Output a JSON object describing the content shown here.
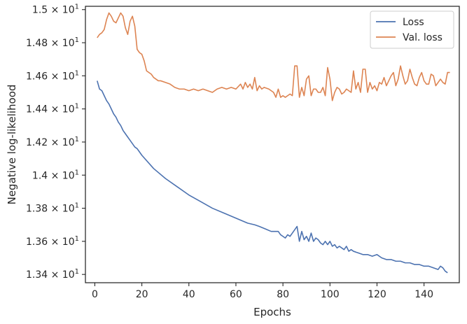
{
  "chart_data": {
    "type": "line",
    "xlabel": "Epochs",
    "ylabel": "Negative log-likelihood",
    "xlim": [
      -4,
      155
    ],
    "ylim": [
      13.35,
      15.02
    ],
    "x_ticks": [
      0,
      20,
      40,
      60,
      80,
      100,
      120,
      140
    ],
    "y_ticks": [
      {
        "value": 13.4,
        "mantissa": "1.34",
        "exponent": "1"
      },
      {
        "value": 13.6,
        "mantissa": "1.36",
        "exponent": "1"
      },
      {
        "value": 13.8,
        "mantissa": "1.38",
        "exponent": "1"
      },
      {
        "value": 14.0,
        "mantissa": "1.4",
        "exponent": "1"
      },
      {
        "value": 14.2,
        "mantissa": "1.42",
        "exponent": "1"
      },
      {
        "value": 14.4,
        "mantissa": "1.44",
        "exponent": "1"
      },
      {
        "value": 14.6,
        "mantissa": "1.46",
        "exponent": "1"
      },
      {
        "value": 14.8,
        "mantissa": "1.48",
        "exponent": "1"
      },
      {
        "value": 15.0,
        "mantissa": "1.5",
        "exponent": "1"
      }
    ],
    "grid": false,
    "legend_position": "top-right",
    "series": [
      {
        "name": "Loss",
        "color": "#4c72b0",
        "points": [
          [
            1,
            14.57
          ],
          [
            2,
            14.52
          ],
          [
            3,
            14.51
          ],
          [
            4,
            14.48
          ],
          [
            5,
            14.45
          ],
          [
            6,
            14.43
          ],
          [
            7,
            14.4
          ],
          [
            8,
            14.37
          ],
          [
            9,
            14.35
          ],
          [
            10,
            14.32
          ],
          [
            11,
            14.3
          ],
          [
            12,
            14.27
          ],
          [
            13,
            14.25
          ],
          [
            14,
            14.23
          ],
          [
            15,
            14.21
          ],
          [
            16,
            14.19
          ],
          [
            17,
            14.17
          ],
          [
            18,
            14.16
          ],
          [
            19,
            14.14
          ],
          [
            20,
            14.12
          ],
          [
            25,
            14.04
          ],
          [
            30,
            13.98
          ],
          [
            35,
            13.93
          ],
          [
            40,
            13.88
          ],
          [
            45,
            13.84
          ],
          [
            50,
            13.8
          ],
          [
            55,
            13.77
          ],
          [
            60,
            13.74
          ],
          [
            65,
            13.71
          ],
          [
            68,
            13.7
          ],
          [
            70,
            13.69
          ],
          [
            75,
            13.66
          ],
          [
            78,
            13.66
          ],
          [
            79,
            13.64
          ],
          [
            80,
            13.63
          ],
          [
            81,
            13.62
          ],
          [
            82,
            13.64
          ],
          [
            83,
            13.63
          ],
          [
            84,
            13.65
          ],
          [
            85,
            13.67
          ],
          [
            86,
            13.69
          ],
          [
            87,
            13.6
          ],
          [
            88,
            13.66
          ],
          [
            89,
            13.61
          ],
          [
            90,
            13.63
          ],
          [
            91,
            13.6
          ],
          [
            92,
            13.65
          ],
          [
            93,
            13.6
          ],
          [
            94,
            13.62
          ],
          [
            95,
            13.61
          ],
          [
            96,
            13.59
          ],
          [
            97,
            13.58
          ],
          [
            98,
            13.6
          ],
          [
            99,
            13.58
          ],
          [
            100,
            13.6
          ],
          [
            101,
            13.57
          ],
          [
            102,
            13.58
          ],
          [
            103,
            13.56
          ],
          [
            104,
            13.57
          ],
          [
            105,
            13.56
          ],
          [
            106,
            13.55
          ],
          [
            107,
            13.57
          ],
          [
            108,
            13.54
          ],
          [
            109,
            13.55
          ],
          [
            110,
            13.54
          ],
          [
            112,
            13.53
          ],
          [
            114,
            13.52
          ],
          [
            116,
            13.52
          ],
          [
            118,
            13.51
          ],
          [
            120,
            13.52
          ],
          [
            122,
            13.5
          ],
          [
            124,
            13.49
          ],
          [
            126,
            13.49
          ],
          [
            128,
            13.48
          ],
          [
            130,
            13.48
          ],
          [
            132,
            13.47
          ],
          [
            134,
            13.47
          ],
          [
            136,
            13.46
          ],
          [
            138,
            13.46
          ],
          [
            140,
            13.45
          ],
          [
            142,
            13.45
          ],
          [
            144,
            13.44
          ],
          [
            146,
            13.43
          ],
          [
            147,
            13.45
          ],
          [
            148,
            13.44
          ],
          [
            149,
            13.42
          ],
          [
            150,
            13.41
          ]
        ]
      },
      {
        "name": "Val. loss",
        "color": "#dd8452",
        "points": [
          [
            1,
            14.83
          ],
          [
            2,
            14.85
          ],
          [
            3,
            14.86
          ],
          [
            4,
            14.88
          ],
          [
            5,
            14.94
          ],
          [
            6,
            14.98
          ],
          [
            7,
            14.96
          ],
          [
            8,
            14.93
          ],
          [
            9,
            14.92
          ],
          [
            10,
            14.95
          ],
          [
            11,
            14.98
          ],
          [
            12,
            14.96
          ],
          [
            13,
            14.89
          ],
          [
            14,
            14.85
          ],
          [
            15,
            14.93
          ],
          [
            16,
            14.96
          ],
          [
            17,
            14.9
          ],
          [
            18,
            14.76
          ],
          [
            19,
            14.74
          ],
          [
            20,
            14.73
          ],
          [
            21,
            14.69
          ],
          [
            22,
            14.63
          ],
          [
            23,
            14.62
          ],
          [
            24,
            14.61
          ],
          [
            25,
            14.59
          ],
          [
            26,
            14.58
          ],
          [
            27,
            14.57
          ],
          [
            28,
            14.57
          ],
          [
            30,
            14.56
          ],
          [
            32,
            14.55
          ],
          [
            34,
            14.53
          ],
          [
            36,
            14.52
          ],
          [
            38,
            14.52
          ],
          [
            40,
            14.51
          ],
          [
            42,
            14.52
          ],
          [
            44,
            14.51
          ],
          [
            46,
            14.52
          ],
          [
            48,
            14.51
          ],
          [
            50,
            14.5
          ],
          [
            52,
            14.52
          ],
          [
            54,
            14.53
          ],
          [
            56,
            14.52
          ],
          [
            58,
            14.53
          ],
          [
            60,
            14.52
          ],
          [
            62,
            14.55
          ],
          [
            63,
            14.52
          ],
          [
            64,
            14.56
          ],
          [
            65,
            14.53
          ],
          [
            66,
            14.55
          ],
          [
            67,
            14.52
          ],
          [
            68,
            14.59
          ],
          [
            69,
            14.51
          ],
          [
            70,
            14.54
          ],
          [
            71,
            14.52
          ],
          [
            72,
            14.53
          ],
          [
            74,
            14.52
          ],
          [
            76,
            14.5
          ],
          [
            77,
            14.47
          ],
          [
            78,
            14.52
          ],
          [
            79,
            14.47
          ],
          [
            80,
            14.48
          ],
          [
            81,
            14.47
          ],
          [
            82,
            14.48
          ],
          [
            83,
            14.49
          ],
          [
            84,
            14.48
          ],
          [
            85,
            14.66
          ],
          [
            86,
            14.66
          ],
          [
            87,
            14.47
          ],
          [
            88,
            14.53
          ],
          [
            89,
            14.48
          ],
          [
            90,
            14.58
          ],
          [
            91,
            14.6
          ],
          [
            92,
            14.48
          ],
          [
            93,
            14.52
          ],
          [
            94,
            14.52
          ],
          [
            95,
            14.5
          ],
          [
            96,
            14.5
          ],
          [
            97,
            14.53
          ],
          [
            98,
            14.48
          ],
          [
            99,
            14.65
          ],
          [
            100,
            14.58
          ],
          [
            101,
            14.45
          ],
          [
            102,
            14.5
          ],
          [
            103,
            14.53
          ],
          [
            104,
            14.52
          ],
          [
            105,
            14.49
          ],
          [
            106,
            14.5
          ],
          [
            107,
            14.52
          ],
          [
            108,
            14.51
          ],
          [
            109,
            14.5
          ],
          [
            110,
            14.63
          ],
          [
            111,
            14.52
          ],
          [
            112,
            14.56
          ],
          [
            113,
            14.5
          ],
          [
            114,
            14.64
          ],
          [
            115,
            14.64
          ],
          [
            116,
            14.5
          ],
          [
            117,
            14.56
          ],
          [
            118,
            14.52
          ],
          [
            119,
            14.54
          ],
          [
            120,
            14.51
          ],
          [
            121,
            14.56
          ],
          [
            122,
            14.55
          ],
          [
            123,
            14.59
          ],
          [
            124,
            14.54
          ],
          [
            125,
            14.57
          ],
          [
            126,
            14.6
          ],
          [
            127,
            14.62
          ],
          [
            128,
            14.54
          ],
          [
            129,
            14.58
          ],
          [
            130,
            14.66
          ],
          [
            131,
            14.6
          ],
          [
            132,
            14.55
          ],
          [
            133,
            14.57
          ],
          [
            134,
            14.64
          ],
          [
            135,
            14.59
          ],
          [
            136,
            14.55
          ],
          [
            137,
            14.54
          ],
          [
            138,
            14.59
          ],
          [
            139,
            14.62
          ],
          [
            140,
            14.57
          ],
          [
            141,
            14.55
          ],
          [
            142,
            14.55
          ],
          [
            143,
            14.61
          ],
          [
            144,
            14.6
          ],
          [
            145,
            14.54
          ],
          [
            146,
            14.56
          ],
          [
            147,
            14.58
          ],
          [
            148,
            14.56
          ],
          [
            149,
            14.55
          ],
          [
            150,
            14.62
          ],
          [
            151,
            14.62
          ]
        ]
      }
    ]
  }
}
